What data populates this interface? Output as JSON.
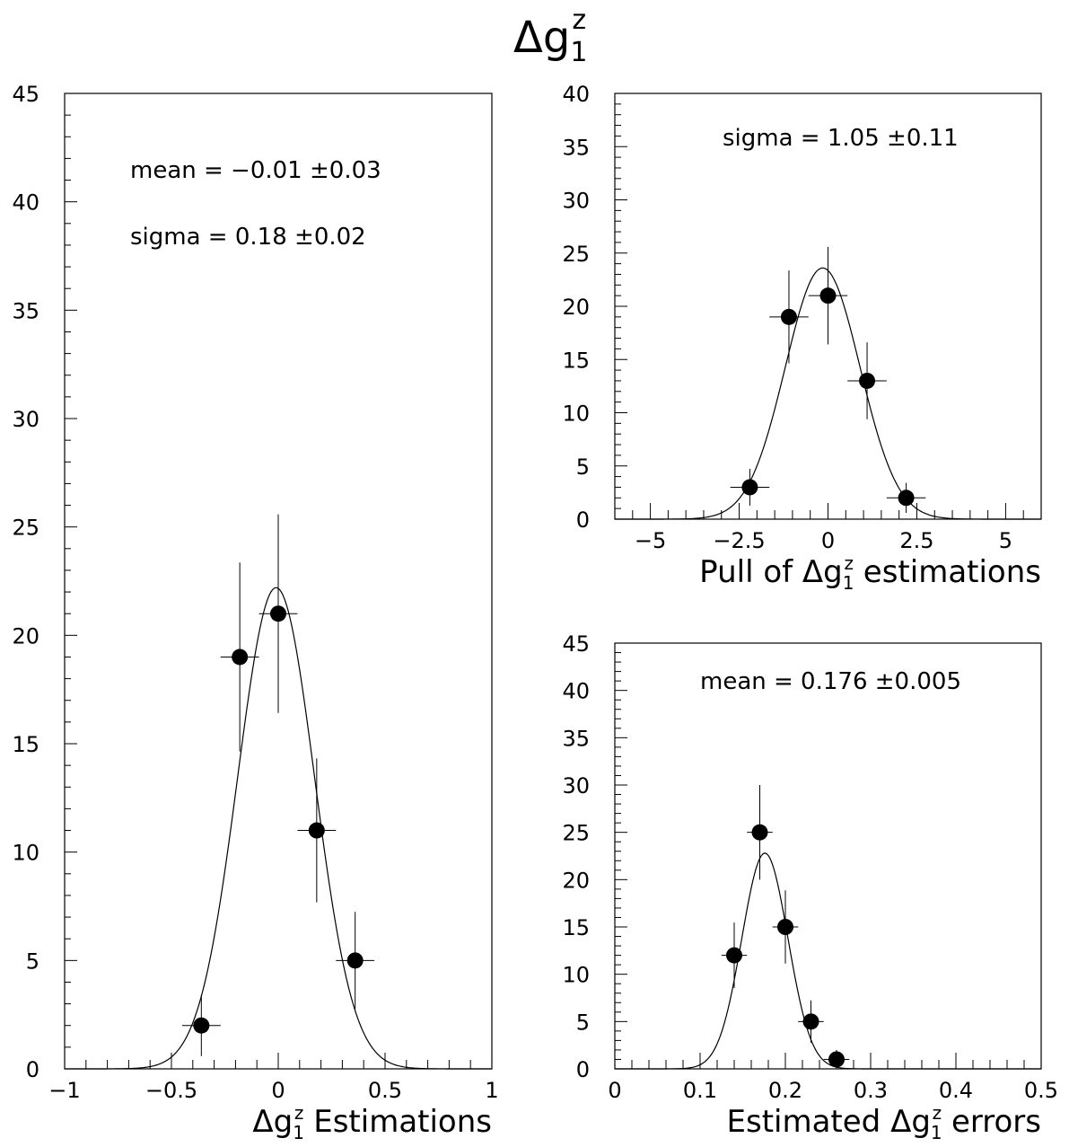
{
  "page": {
    "title": "Δg",
    "title_sup": "z",
    "title_sub": "1"
  },
  "chart_data": [
    {
      "type": "scatter",
      "id": "estimations",
      "xlabel": "Estimations",
      "xlabel_symbol": "Δg",
      "xlabel_sup": "z",
      "xlabel_sub": "1",
      "xlim": [
        -1,
        1
      ],
      "ylim": [
        0,
        45
      ],
      "xticks": [
        -1,
        -0.5,
        0,
        0.5,
        1
      ],
      "xtick_labels": [
        "−1",
        "−0.5",
        "0",
        "0.5",
        "1"
      ],
      "yticks": [
        0,
        5,
        10,
        15,
        20,
        25,
        30,
        35,
        40,
        45
      ],
      "ytick_labels": [
        "0",
        "5",
        "10",
        "15",
        "20",
        "25",
        "30",
        "35",
        "40",
        "45"
      ],
      "bin_half_width": 0.09,
      "points": [
        {
          "x": -0.36,
          "y": 2,
          "yerr": 1.41
        },
        {
          "x": -0.18,
          "y": 19,
          "yerr": 4.36
        },
        {
          "x": 0.0,
          "y": 21,
          "yerr": 4.58
        },
        {
          "x": 0.18,
          "y": 11,
          "yerr": 3.32
        },
        {
          "x": 0.36,
          "y": 5,
          "yerr": 2.24
        }
      ],
      "fit": {
        "mean": -0.01,
        "sigma": 0.18,
        "amplitude": 22.2
      },
      "annotations": [
        {
          "label": "mean = −0.01",
          "pm": "0.03"
        },
        {
          "label": "sigma =  0.18",
          "pm": "0.02"
        }
      ]
    },
    {
      "type": "scatter",
      "id": "pull",
      "xlabel_prefix": "Pull of",
      "xlabel": "estimations",
      "xlabel_symbol": "Δg",
      "xlabel_sup": "z",
      "xlabel_sub": "1",
      "xlim": [
        -6,
        6
      ],
      "ylim": [
        0,
        40
      ],
      "xticks": [
        -5,
        -2.5,
        0,
        2.5,
        5
      ],
      "xtick_labels": [
        "−5",
        "−2.5",
        "0",
        "2.5",
        "5"
      ],
      "yticks": [
        0,
        5,
        10,
        15,
        20,
        25,
        30,
        35,
        40
      ],
      "ytick_labels": [
        "0",
        "5",
        "10",
        "15",
        "20",
        "25",
        "30",
        "35",
        "40"
      ],
      "bin_half_width": 0.55,
      "points": [
        {
          "x": -2.2,
          "y": 3,
          "yerr": 1.73
        },
        {
          "x": -1.1,
          "y": 19,
          "yerr": 4.36
        },
        {
          "x": 0.0,
          "y": 21,
          "yerr": 4.58
        },
        {
          "x": 1.1,
          "y": 13,
          "yerr": 3.61
        },
        {
          "x": 2.2,
          "y": 2,
          "yerr": 1.41
        }
      ],
      "fit": {
        "mean": -0.15,
        "sigma": 1.05,
        "amplitude": 23.6
      },
      "annotations": [
        {
          "label": "sigma = 1.05",
          "pm": "0.11"
        }
      ]
    },
    {
      "type": "scatter",
      "id": "errors",
      "xlabel_prefix": "Estimated",
      "xlabel": "errors",
      "xlabel_symbol": "Δg",
      "xlabel_sup": "z",
      "xlabel_sub": "1",
      "xlim": [
        0,
        0.5
      ],
      "ylim": [
        0,
        45
      ],
      "xticks": [
        0,
        0.1,
        0.2,
        0.3,
        0.4,
        0.5
      ],
      "xtick_labels": [
        "0",
        "0.1",
        "0.2",
        "0.3",
        "0.4",
        "0.5"
      ],
      "yticks": [
        0,
        5,
        10,
        15,
        20,
        25,
        30,
        35,
        40,
        45
      ],
      "ytick_labels": [
        "0",
        "5",
        "10",
        "15",
        "20",
        "25",
        "30",
        "35",
        "40",
        "45"
      ],
      "bin_half_width": 0.015,
      "points": [
        {
          "x": 0.14,
          "y": 12,
          "yerr": 3.46
        },
        {
          "x": 0.17,
          "y": 25,
          "yerr": 5.0
        },
        {
          "x": 0.2,
          "y": 15,
          "yerr": 3.87
        },
        {
          "x": 0.23,
          "y": 5,
          "yerr": 2.24
        },
        {
          "x": 0.26,
          "y": 1,
          "yerr": 1.0
        }
      ],
      "fit": {
        "mean": 0.176,
        "sigma": 0.027,
        "amplitude": 22.8
      },
      "annotations": [
        {
          "label": "mean = 0.176",
          "pm": "0.005"
        }
      ]
    }
  ]
}
